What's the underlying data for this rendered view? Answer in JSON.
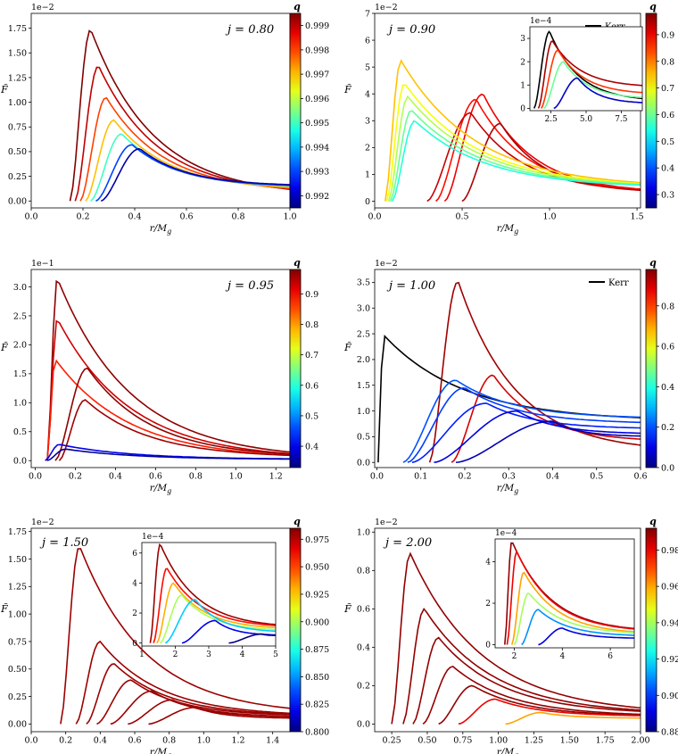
{
  "figure": {
    "y_symbol": "F̃",
    "x_label_main": "r/M",
    "x_label_sub": "g",
    "colorbar_label": "q"
  },
  "chart_data": [
    {
      "type": "line",
      "panel": "j=0.80",
      "annotation": "j = 0.80",
      "scale": "1e−2",
      "xlim": [
        0,
        1.0
      ],
      "ylim": [
        -0.07,
        1.9
      ],
      "xticks": [
        "0.0",
        "0.2",
        "0.4",
        "0.6",
        "0.8",
        "1.0"
      ],
      "xtick_values": [
        0,
        0.2,
        0.4,
        0.6,
        0.8,
        1.0
      ],
      "yticks": [
        "0.00",
        "0.25",
        "0.50",
        "0.75",
        "1.00",
        "1.25",
        "1.50",
        "1.75"
      ],
      "ytick_values": [
        0,
        0.25,
        0.5,
        0.75,
        1.0,
        1.25,
        1.5,
        1.75
      ],
      "colorbar": {
        "range": [
          0.9915,
          0.9995
        ],
        "ticks": [
          "0.992",
          "0.993",
          "0.994",
          "0.995",
          "0.996",
          "0.997",
          "0.998",
          "0.999"
        ],
        "values": [
          0.992,
          0.993,
          0.994,
          0.995,
          0.996,
          0.997,
          0.998,
          0.999
        ]
      },
      "series": [
        {
          "q": 0.9995,
          "r0": 0.15,
          "rp": 0.23,
          "peak": 1.74,
          "tail": 0.05
        },
        {
          "q": 0.999,
          "r0": 0.17,
          "rp": 0.26,
          "peak": 1.37,
          "tail": 0.07
        },
        {
          "q": 0.998,
          "r0": 0.19,
          "rp": 0.29,
          "peak": 1.05,
          "tail": 0.09
        },
        {
          "q": 0.997,
          "r0": 0.21,
          "rp": 0.32,
          "peak": 0.82,
          "tail": 0.11
        },
        {
          "q": 0.995,
          "r0": 0.23,
          "rp": 0.35,
          "peak": 0.68,
          "tail": 0.13
        },
        {
          "q": 0.993,
          "r0": 0.25,
          "rp": 0.39,
          "peak": 0.57,
          "tail": 0.14
        },
        {
          "q": 0.9918,
          "r0": 0.27,
          "rp": 0.42,
          "peak": 0.53,
          "tail": 0.15
        }
      ]
    },
    {
      "type": "line",
      "panel": "j=0.90",
      "annotation": "j = 0.90",
      "scale": "1e−2",
      "xlim": [
        0,
        1.52
      ],
      "ylim": [
        -0.25,
        7.0
      ],
      "xticks": [
        "0.0",
        "0.5",
        "1.0",
        "1.5"
      ],
      "xtick_values": [
        0,
        0.5,
        1.0,
        1.5
      ],
      "yticks": [
        "0",
        "1",
        "2",
        "3",
        "4",
        "5",
        "6",
        "7"
      ],
      "ytick_values": [
        0,
        1,
        2,
        3,
        4,
        5,
        6,
        7
      ],
      "colorbar": {
        "range": [
          0.25,
          0.98
        ],
        "ticks": [
          "0.3",
          "0.4",
          "0.5",
          "0.6",
          "0.7",
          "0.8",
          "0.9"
        ],
        "values": [
          0.3,
          0.4,
          0.5,
          0.6,
          0.7,
          0.8,
          0.9
        ]
      },
      "legend": "Kerr",
      "series": [
        {
          "q": 0.9,
          "r0": 0.4,
          "rp": 0.62,
          "peak": 4.0,
          "tail": 0.3
        },
        {
          "q": 0.88,
          "r0": 0.35,
          "rp": 0.58,
          "peak": 3.8,
          "tail": 0.3
        },
        {
          "q": 0.95,
          "r0": 0.5,
          "rp": 0.72,
          "peak": 2.9,
          "tail": 0.3
        },
        {
          "q": 0.93,
          "r0": 0.3,
          "rp": 0.55,
          "peak": 3.3,
          "tail": 0.3
        },
        {
          "q": 0.75,
          "r0": 0.06,
          "rp": 0.15,
          "peak": 5.25,
          "tail": 0.5
        },
        {
          "q": 0.7,
          "r0": 0.07,
          "rp": 0.17,
          "peak": 4.4,
          "tail": 0.5
        },
        {
          "q": 0.65,
          "r0": 0.08,
          "rp": 0.19,
          "peak": 3.9,
          "tail": 0.5
        },
        {
          "q": 0.6,
          "r0": 0.09,
          "rp": 0.21,
          "peak": 3.4,
          "tail": 0.5
        },
        {
          "q": 0.55,
          "r0": 0.1,
          "rp": 0.23,
          "peak": 3.0,
          "tail": 0.5
        }
      ],
      "inset": {
        "scale": "1e−4",
        "xlim": [
          1.0,
          9.0
        ],
        "ylim": [
          -0.1,
          3.5
        ],
        "xticks": [
          "2.5",
          "5.0",
          "7.5"
        ],
        "xtick_values": [
          2.5,
          5.0,
          7.5
        ],
        "yticks": [
          "0",
          "1",
          "2",
          "3"
        ],
        "ytick_values": [
          0,
          1,
          2,
          3
        ],
        "series": [
          {
            "q": "Kerr",
            "r0": 1.3,
            "rp": 2.4,
            "peak": 3.3,
            "tail": 0.3
          },
          {
            "q": 0.95,
            "r0": 1.6,
            "rp": 2.6,
            "peak": 2.9,
            "tail": 0.9
          },
          {
            "q": 0.85,
            "r0": 1.8,
            "rp": 3.0,
            "peak": 2.5,
            "tail": 0.6
          },
          {
            "q": 0.6,
            "r0": 2.0,
            "rp": 3.4,
            "peak": 2.0,
            "tail": 0.4
          },
          {
            "q": 0.3,
            "r0": 2.7,
            "rp": 4.4,
            "peak": 1.3,
            "tail": 0.2
          }
        ]
      }
    },
    {
      "type": "line",
      "panel": "j=0.95",
      "annotation": "j = 0.95",
      "scale": "1e−1",
      "xlim": [
        -0.02,
        1.27
      ],
      "ylim": [
        -0.12,
        3.3
      ],
      "xticks": [
        "0.0",
        "0.2",
        "0.4",
        "0.6",
        "0.8",
        "1.0",
        "1.2"
      ],
      "xtick_values": [
        0,
        0.2,
        0.4,
        0.6,
        0.8,
        1.0,
        1.2
      ],
      "yticks": [
        "0.0",
        "0.5",
        "1.0",
        "1.5",
        "2.0",
        "2.5",
        "3.0"
      ],
      "ytick_values": [
        0,
        0.5,
        1.0,
        1.5,
        2.0,
        2.5,
        3.0
      ],
      "colorbar": {
        "range": [
          0.33,
          0.98
        ],
        "ticks": [
          "0.4",
          "0.5",
          "0.6",
          "0.7",
          "0.8",
          "0.9"
        ],
        "values": [
          0.4,
          0.5,
          0.6,
          0.7,
          0.8,
          0.9
        ]
      },
      "series": [
        {
          "q": 0.97,
          "r0": 0.06,
          "rp": 0.11,
          "peak": 3.15,
          "tail": 0.02
        },
        {
          "q": 0.93,
          "r0": 0.06,
          "rp": 0.11,
          "peak": 2.45,
          "tail": 0.02
        },
        {
          "q": 0.88,
          "r0": 0.06,
          "rp": 0.1,
          "peak": 1.75,
          "tail": 0.02
        },
        {
          "q": 0.97,
          "r0": 0.1,
          "rp": 0.26,
          "peak": 1.6,
          "tail": 0.05
        },
        {
          "q": 0.96,
          "r0": 0.12,
          "rp": 0.25,
          "peak": 1.05,
          "tail": 0.05
        },
        {
          "q": 0.4,
          "r0": 0.05,
          "rp": 0.12,
          "peak": 0.28,
          "tail": 0.02
        },
        {
          "q": 0.35,
          "r0": 0.06,
          "rp": 0.15,
          "peak": 0.2,
          "tail": 0.02
        }
      ]
    },
    {
      "type": "line",
      "panel": "j=1.00",
      "annotation": "j = 1.00",
      "scale": "1e−2",
      "xlim": [
        -0.005,
        0.6
      ],
      "ylim": [
        -0.1,
        3.75
      ],
      "xticks": [
        "0.0",
        "0.1",
        "0.2",
        "0.3",
        "0.4",
        "0.5",
        "0.6"
      ],
      "xtick_values": [
        0,
        0.1,
        0.2,
        0.3,
        0.4,
        0.5,
        0.6
      ],
      "yticks": [
        "0.0",
        "0.5",
        "1.0",
        "1.5",
        "2.0",
        "2.5",
        "3.0",
        "3.5"
      ],
      "ytick_values": [
        0,
        0.5,
        1.0,
        1.5,
        2.0,
        2.5,
        3.0,
        3.5
      ],
      "colorbar": {
        "range": [
          0.0,
          0.98
        ],
        "ticks": [
          "0.0",
          "0.2",
          "0.4",
          "0.6",
          "0.8"
        ],
        "values": [
          0,
          0.2,
          0.4,
          0.6,
          0.8
        ]
      },
      "legend": "Kerr",
      "series": [
        {
          "q": "Kerr",
          "r0": 0.003,
          "rp": 0.015,
          "peak": 2.48,
          "tail": 0.8
        },
        {
          "q": 0.95,
          "r0": 0.12,
          "rp": 0.185,
          "peak": 3.52,
          "tail": 0.2
        },
        {
          "q": 0.9,
          "r0": 0.17,
          "rp": 0.265,
          "peak": 1.7,
          "tail": 0.4
        },
        {
          "q": 0.2,
          "r0": 0.06,
          "rp": 0.18,
          "peak": 1.6,
          "tail": 0.85
        },
        {
          "q": 0.18,
          "r0": 0.07,
          "rp": 0.2,
          "peak": 1.45,
          "tail": 0.75
        },
        {
          "q": 0.15,
          "r0": 0.08,
          "rp": 0.25,
          "peak": 1.15,
          "tail": 0.65
        },
        {
          "q": 0.1,
          "r0": 0.13,
          "rp": 0.32,
          "peak": 1.0,
          "tail": 0.55
        },
        {
          "q": 0.05,
          "r0": 0.18,
          "rp": 0.4,
          "peak": 0.8,
          "tail": 0.5
        }
      ]
    },
    {
      "type": "line",
      "panel": "j=1.50",
      "annotation": "j = 1.50",
      "scale": "1e−2",
      "xlim": [
        0,
        1.5
      ],
      "ylim": [
        -0.07,
        1.78
      ],
      "xticks": [
        "0.0",
        "0.2",
        "0.4",
        "0.6",
        "0.8",
        "1.0",
        "1.2",
        "1.4"
      ],
      "xtick_values": [
        0,
        0.2,
        0.4,
        0.6,
        0.8,
        1.0,
        1.2,
        1.4
      ],
      "yticks": [
        "0.00",
        "0.25",
        "0.50",
        "0.75",
        "1.00",
        "1.25",
        "1.50",
        "1.75"
      ],
      "ytick_values": [
        0,
        0.25,
        0.5,
        0.75,
        1.0,
        1.25,
        1.5,
        1.75
      ],
      "colorbar": {
        "range": [
          0.8,
          0.985
        ],
        "ticks": [
          "0.800",
          "0.825",
          "0.850",
          "0.875",
          "0.900",
          "0.925",
          "0.950",
          "0.975"
        ],
        "values": [
          0.8,
          0.825,
          0.85,
          0.875,
          0.9,
          0.925,
          0.95,
          0.975
        ]
      },
      "series": [
        {
          "q": 0.98,
          "r0": 0.17,
          "rp": 0.28,
          "peak": 1.62,
          "tail": 0.08
        },
        {
          "q": 0.98,
          "r0": 0.26,
          "rp": 0.4,
          "peak": 0.75,
          "tail": 0.07
        },
        {
          "q": 0.98,
          "r0": 0.32,
          "rp": 0.48,
          "peak": 0.55,
          "tail": 0.07
        },
        {
          "q": 0.98,
          "r0": 0.38,
          "rp": 0.58,
          "peak": 0.4,
          "tail": 0.07
        },
        {
          "q": 0.98,
          "r0": 0.46,
          "rp": 0.7,
          "peak": 0.3,
          "tail": 0.06
        },
        {
          "q": 0.98,
          "r0": 0.56,
          "rp": 0.82,
          "peak": 0.22,
          "tail": 0.06
        },
        {
          "q": 0.98,
          "r0": 0.68,
          "rp": 0.95,
          "peak": 0.15,
          "tail": 0.05
        }
      ],
      "inset": {
        "scale": "1e−4",
        "xlim": [
          1.0,
          5.0
        ],
        "ylim": [
          -0.2,
          6.7
        ],
        "xticks": [
          "1",
          "2",
          "3",
          "4",
          "5"
        ],
        "xtick_values": [
          1,
          2,
          3,
          4,
          5
        ],
        "yticks": [
          "0",
          "2",
          "4",
          "6"
        ],
        "ytick_values": [
          0,
          2,
          4,
          6
        ],
        "series": [
          {
            "q": 0.98,
            "r0": 1.25,
            "rp": 1.55,
            "peak": 6.6,
            "tail": 1.0
          },
          {
            "q": 0.96,
            "r0": 1.35,
            "rp": 1.75,
            "peak": 5.0,
            "tail": 1.0
          },
          {
            "q": 0.93,
            "r0": 1.45,
            "rp": 1.95,
            "peak": 4.0,
            "tail": 0.9
          },
          {
            "q": 0.9,
            "r0": 1.55,
            "rp": 2.2,
            "peak": 3.2,
            "tail": 0.8
          },
          {
            "q": 0.86,
            "r0": 1.7,
            "rp": 2.6,
            "peak": 2.9,
            "tail": 0.7
          },
          {
            "q": 0.82,
            "r0": 2.2,
            "rp": 3.2,
            "peak": 1.5,
            "tail": 0.5
          },
          {
            "q": 0.8,
            "r0": 3.6,
            "rp": 4.6,
            "peak": 0.6,
            "tail": 0.5
          }
        ]
      }
    },
    {
      "type": "line",
      "panel": "j=2.00",
      "annotation": "j = 2.00",
      "scale": "1e−2",
      "xlim": [
        0.13,
        2.0
      ],
      "ylim": [
        -0.04,
        1.02
      ],
      "xticks": [
        "0.25",
        "0.50",
        "0.75",
        "1.00",
        "1.25",
        "1.50",
        "1.75",
        "2.00"
      ],
      "xtick_values": [
        0.25,
        0.5,
        0.75,
        1.0,
        1.25,
        1.5,
        1.75,
        2.0
      ],
      "yticks": [
        "0.0",
        "0.2",
        "0.4",
        "0.6",
        "0.8",
        "1.0"
      ],
      "ytick_values": [
        0,
        0.2,
        0.4,
        0.6,
        0.8,
        1.0
      ],
      "colorbar": {
        "range": [
          0.88,
          0.992
        ],
        "ticks": [
          "0.88",
          "0.90",
          "0.92",
          "0.94",
          "0.96",
          "0.98"
        ],
        "values": [
          0.88,
          0.9,
          0.92,
          0.94,
          0.96,
          0.98
        ]
      },
      "series": [
        {
          "q": 0.99,
          "r0": 0.25,
          "rp": 0.38,
          "peak": 0.89,
          "tail": 0.05
        },
        {
          "q": 0.99,
          "r0": 0.33,
          "rp": 0.48,
          "peak": 0.6,
          "tail": 0.05
        },
        {
          "q": 0.99,
          "r0": 0.4,
          "rp": 0.58,
          "peak": 0.45,
          "tail": 0.05
        },
        {
          "q": 0.99,
          "r0": 0.47,
          "rp": 0.68,
          "peak": 0.3,
          "tail": 0.04
        },
        {
          "q": 0.99,
          "r0": 0.58,
          "rp": 0.82,
          "peak": 0.2,
          "tail": 0.04
        },
        {
          "q": 0.98,
          "r0": 0.72,
          "rp": 0.98,
          "peak": 0.13,
          "tail": 0.04
        },
        {
          "q": 0.96,
          "r0": 1.05,
          "rp": 1.3,
          "peak": 0.06,
          "tail": 0.03
        }
      ],
      "inset": {
        "scale": "1e−4",
        "xlim": [
          1.2,
          7.0
        ],
        "ylim": [
          -0.15,
          5.1
        ],
        "xticks": [
          "2",
          "4",
          "6"
        ],
        "xtick_values": [
          2,
          4,
          6
        ],
        "yticks": [
          "0",
          "2",
          "4"
        ],
        "ytick_values": [
          0,
          2,
          4
        ],
        "series": [
          {
            "q": 0.99,
            "r0": 1.6,
            "rp": 1.9,
            "peak": 5.0,
            "tail": 0.6
          },
          {
            "q": 0.98,
            "r0": 1.7,
            "rp": 2.1,
            "peak": 4.5,
            "tail": 0.6
          },
          {
            "q": 0.96,
            "r0": 1.9,
            "rp": 2.4,
            "peak": 3.5,
            "tail": 0.5
          },
          {
            "q": 0.94,
            "r0": 2.0,
            "rp": 2.6,
            "peak": 2.5,
            "tail": 0.5
          },
          {
            "q": 0.91,
            "r0": 2.3,
            "rp": 3.0,
            "peak": 1.7,
            "tail": 0.4
          },
          {
            "q": 0.89,
            "r0": 3.0,
            "rp": 4.0,
            "peak": 0.8,
            "tail": 0.3
          }
        ]
      }
    }
  ]
}
